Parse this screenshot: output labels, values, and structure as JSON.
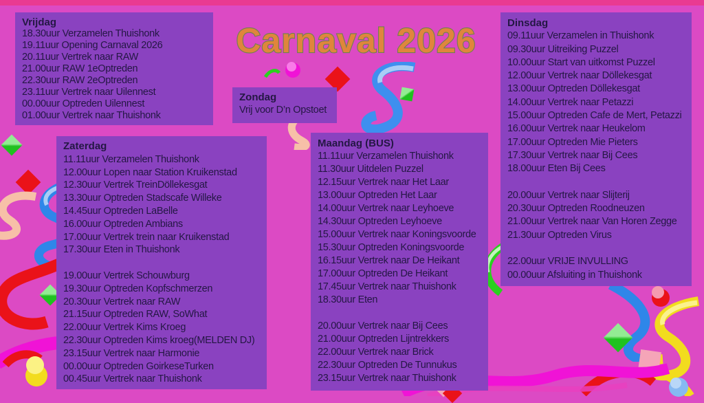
{
  "poster": {
    "title": "Carnaval 2026"
  },
  "colors": {
    "background": "#DC4AC4",
    "top_border": "#E93A92",
    "card_background": "#8A42C0",
    "card_text": "#241744",
    "title_fill": "#E0853C",
    "title_outline": "#6F8150"
  },
  "days": {
    "vrijdag": {
      "header": "Vrijdag",
      "lines": [
        "18.30uur Verzamelen Thuishonk",
        "19.11uur Opening Carnaval 2026",
        "20.11uur Vertrek naar RAW",
        "21.00uur RAW 1eOptreden",
        "22.30uur RAW 2eOptreden",
        "23.11uur Vertrek naar Uilennest",
        "00.00uur Optreden Uilennest",
        "01.00uur Vertrek naar Thuishonk"
      ]
    },
    "zondag": {
      "header": "Zondag",
      "lines": [
        "Vrij voor D’n Opstoet"
      ]
    },
    "zaterdag": {
      "header": "Zaterdag",
      "lines": [
        "11.11uur Verzamelen Thuishonk",
        "12.00uur Lopen naar Station Kruikenstad",
        "12.30uur Vertrek TreinDöllekesgat",
        "13.30uur Optreden Stadscafe Willeke",
        "14.45uur Optreden LaBelle",
        "16.00uur Optreden Ambians",
        "17.00uur Vertrek trein naar Kruikenstad",
        "17.30uur Eten in Thuishonk",
        "",
        "19.00uur Vertrek Schouwburg",
        "19.30uur Optreden Kopfschmerzen",
        "20.30uur Vertrek naar RAW",
        "21.15uur Optreden RAW, SoWhat",
        "22.00uur Vertrek Kims Kroeg",
        "22.30uur Optreden Kims kroeg(MELDEN DJ)",
        "23.15uur Vertrek naar Harmonie",
        "00.00uur Optreden GoirkeseTurken",
        "00.45uur Vertrek naar Thuishonk"
      ]
    },
    "maandag": {
      "header": "Maandag (BUS)",
      "lines": [
        "11.11uur Verzamelen Thuishonk",
        "11.30uur Uitdelen Puzzel",
        "12.15uur Vertrek naar Het Laar",
        "13.00uur Optreden Het Laar",
        "14.00uur Vertrek naar Leyhoeve",
        "14.30uur Optreden Leyhoeve",
        "15.00uur Vertrek naar Koningsvoorde",
        "15.30uur Optreden Koningsvoorde",
        "16.15uur Vertrek naar De Heikant",
        "17.00uur Optreden De Heikant",
        "17.45uur Vertrek naar Thuishonk",
        "18.30uur Eten",
        "",
        "20.00uur Vertrek naar Bij Cees",
        "21.00uur Optreden Lijntrekkers",
        "22.00uur Vertrek naar Brick",
        "22.30uur Optreden De Tunnukus",
        "23.15uur Vertrek naar Thuishonk"
      ]
    },
    "dinsdag": {
      "header": "Dinsdag",
      "lines": [
        "09.11uur Verzamelen in Thuishonk",
        "09.30uur Uitreiking Puzzel",
        "10.00uur Start van uitkomst Puzzel",
        "12.00uur Vertrek naar Döllekesgat",
        "13.00uur Optreden Döllekesgat",
        "14.00uur Vertrek naar Petazzi",
        "15.00uur Optreden Cafe de Mert, Petazzi",
        "16.00uur Vertrek naar Heukelom",
        "17.00uur Optreden Mie Pieters",
        "17.30uur Vertrek naar Bij Cees",
        "18.00uur Eten Bij Cees",
        "",
        "20.00uur Vertrek naar Slijterij",
        "20.30uur Optreden Roodneuzen",
        "21.00uur Vertrek naar Van Horen Zegge",
        "21.30uur Optreden Virus",
        "",
        "22.00uur VRIJE INVULLING",
        "00.00uur Afsluiting in Thuishonk"
      ]
    }
  }
}
